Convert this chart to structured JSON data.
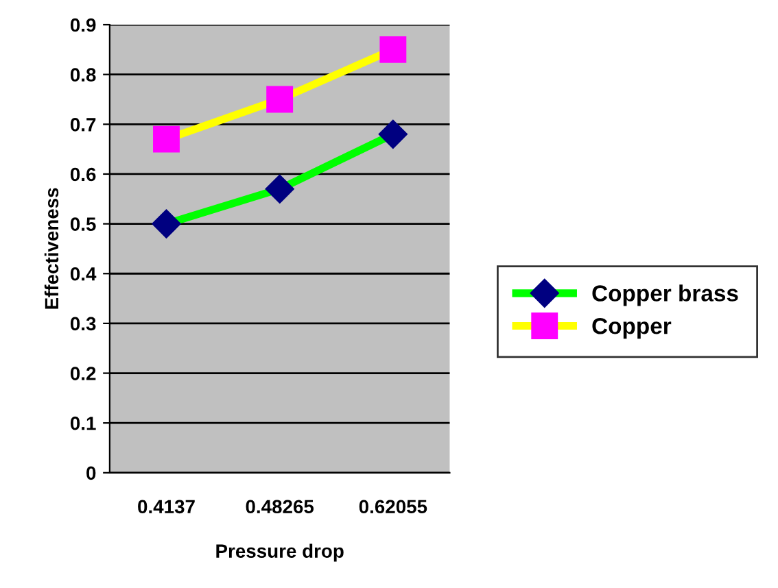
{
  "chart_data": {
    "type": "line",
    "xlabel": "Pressure drop",
    "ylabel": "Effectiveness",
    "categories": [
      "0.4137",
      "0.48265",
      "0.62055"
    ],
    "series": [
      {
        "name": "Copper brass",
        "color": "#00ff00",
        "colors": [
          "#000080",
          "#000080",
          "#000080"
        ],
        "marker": "diamond",
        "values": [
          0.5,
          0.57,
          0.68
        ]
      },
      {
        "name": "Copper",
        "color": "#ffff00",
        "colors": [
          "#ff00ff",
          "#ff00ff",
          "#ff00ff"
        ],
        "marker": "square",
        "values": [
          0.67,
          0.75,
          0.85
        ]
      }
    ],
    "ylim": [
      0,
      0.9
    ],
    "yticks": [
      0,
      0.1,
      0.2,
      0.3,
      0.4,
      0.5,
      0.6,
      0.7,
      0.8,
      0.9
    ],
    "grid": "y",
    "legend": "right"
  }
}
